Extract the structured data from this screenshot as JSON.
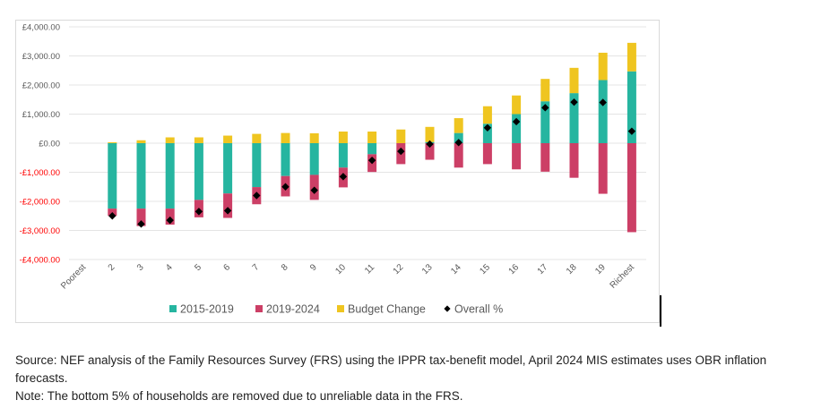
{
  "chart_data": {
    "type": "bar",
    "stacked": true,
    "title": "",
    "xlabel": "",
    "ylabel": "",
    "ylim": [
      -4000,
      4000
    ],
    "yticks": [
      4000,
      3000,
      2000,
      1000,
      0,
      -1000,
      -2000,
      -3000,
      -4000
    ],
    "ytick_labels": [
      "£4,000.00",
      "£3,000.00",
      "£2,000.00",
      "£1,000.00",
      "£0.00",
      "-£1,000.00",
      "-£2,000.00",
      "-£3,000.00",
      "-£4,000.00"
    ],
    "negative_tick_color": "#ff0000",
    "grid": true,
    "legend_position": "bottom",
    "categories": [
      "Poorest",
      "2",
      "3",
      "4",
      "5",
      "6",
      "7",
      "8",
      "9",
      "10",
      "11",
      "12",
      "13",
      "14",
      "15",
      "16",
      "17",
      "18",
      "19",
      "Richest"
    ],
    "series": [
      {
        "name": "2015-2019",
        "kind": "bar",
        "color": "#26b5a0",
        "values": [
          0,
          -2250,
          -2250,
          -2250,
          -1950,
          -1730,
          -1510,
          -1130,
          -1090,
          -840,
          -380,
          0,
          40,
          350,
          670,
          1000,
          1440,
          1720,
          2170,
          2470
        ]
      },
      {
        "name": "2019-2024",
        "kind": "bar",
        "color": "#cc3f66",
        "values": [
          0,
          -250,
          -600,
          -550,
          -600,
          -840,
          -590,
          -700,
          -860,
          -680,
          -610,
          -720,
          -570,
          -840,
          -720,
          -900,
          -980,
          -1190,
          -1740,
          -3060
        ]
      },
      {
        "name": "Budget Change",
        "kind": "bar",
        "color": "#efc520",
        "values": [
          0,
          30,
          100,
          200,
          200,
          260,
          320,
          350,
          340,
          400,
          400,
          470,
          520,
          510,
          600,
          640,
          770,
          870,
          940,
          980
        ]
      },
      {
        "name": "Overall %",
        "kind": "marker",
        "marker": "diamond",
        "color": "#000000",
        "values": [
          null,
          -2500,
          -2780,
          -2650,
          -2350,
          -2320,
          -1800,
          -1500,
          -1620,
          -1150,
          -590,
          -280,
          -30,
          20,
          530,
          740,
          1220,
          1410,
          1400,
          410
        ]
      }
    ]
  },
  "notes": {
    "source": "Source: NEF analysis of the Family Resources Survey (FRS) using the IPPR tax-benefit model, April 2024 MIS estimates uses OBR inflation forecasts.",
    "note": "Note: The bottom 5% of households are removed due to unreliable data in the FRS."
  }
}
